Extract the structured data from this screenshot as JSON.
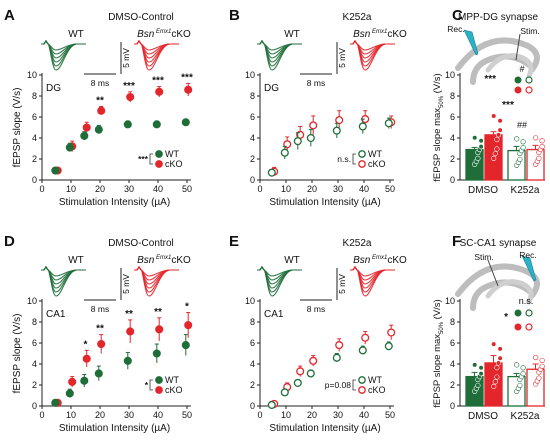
{
  "colors": {
    "wt": "#1f6e3a",
    "cko": "#e3262b",
    "axis": "#222222",
    "brain": "#bdbdbd",
    "electrode": "#29b3c7"
  },
  "text": {
    "wt": "WT",
    "bsn": "Bsn",
    "emx": "Emx1",
    "cko": "cKO",
    "scale_time": "8 ms",
    "scale_volt": "5 mV",
    "rec": "Rec.",
    "stim": "Stim.",
    "stim_sc": "Stim.",
    "rec_sc": "Rec."
  },
  "chart_data": [
    {
      "panel": "A",
      "type": "scatter",
      "title": "DMSO-Control",
      "region": "DG",
      "xlabel": "Stimulation Intensity (µA)",
      "ylabel": "fEPSP slope (V/s)",
      "xlim": [
        0,
        50
      ],
      "ylim": [
        0,
        10
      ],
      "xticks": [
        "0",
        "10",
        "20",
        "30",
        "40",
        "50"
      ],
      "yticks": [
        "0",
        "2",
        "4",
        "6",
        "8",
        "10"
      ],
      "x": [
        5,
        10,
        15,
        20,
        30,
        40,
        50
      ],
      "series": [
        {
          "name": "WT",
          "marker": "filled",
          "values": [
            0.9,
            3.1,
            4.2,
            4.8,
            5.3,
            5.3,
            5.5
          ],
          "errors": [
            0.2,
            0.4,
            0.4,
            0.4,
            0.3,
            0.3,
            0.3
          ]
        },
        {
          "name": "cKO",
          "marker": "filled",
          "values": [
            0.9,
            3.2,
            5.0,
            6.6,
            7.9,
            8.4,
            8.6
          ],
          "errors": [
            0.2,
            0.5,
            0.5,
            0.4,
            0.5,
            0.5,
            0.6
          ]
        }
      ],
      "significance": [
        "",
        "",
        "",
        "**",
        "***",
        "***",
        "***"
      ],
      "legend_sig": "***"
    },
    {
      "panel": "B",
      "type": "scatter",
      "title": "K252a",
      "region": "DG",
      "xlabel": "Stimulation Intensity (µA)",
      "ylabel": "",
      "xlim": [
        0,
        50
      ],
      "ylim": [
        0,
        10
      ],
      "xticks": [
        "0",
        "10",
        "20",
        "30",
        "40",
        "50"
      ],
      "yticks": [
        "0",
        "2",
        "4",
        "6",
        "8",
        "10"
      ],
      "x": [
        5,
        10,
        15,
        20,
        30,
        40,
        50
      ],
      "series": [
        {
          "name": "WT",
          "marker": "open",
          "values": [
            0.7,
            2.6,
            3.7,
            4.0,
            4.7,
            5.1,
            5.4
          ],
          "errors": [
            0.3,
            0.6,
            0.8,
            0.8,
            0.7,
            0.7,
            0.5
          ]
        },
        {
          "name": "cKO",
          "marker": "open",
          "values": [
            0.8,
            3.4,
            4.3,
            5.2,
            5.7,
            5.8,
            5.5
          ],
          "errors": [
            0.4,
            0.7,
            0.8,
            0.9,
            0.9,
            0.8,
            0.6
          ]
        }
      ],
      "significance": [],
      "legend_sig": "n.s."
    },
    {
      "panel": "C",
      "type": "bar",
      "title": "MPP-DG synapse",
      "ylabel": "fEPSP slope max50% (V/s)",
      "ylim": [
        0,
        10
      ],
      "yticks": [
        "0",
        "2",
        "4",
        "6",
        "8",
        "10"
      ],
      "categories": [
        "DMSO",
        "K252a"
      ],
      "series": [
        {
          "name": "WT",
          "values": [
            2.9,
            2.8
          ],
          "errors": [
            0.2,
            0.4
          ]
        },
        {
          "name": "cKO",
          "values": [
            4.3,
            2.9
          ],
          "errors": [
            0.3,
            0.4
          ]
        }
      ],
      "annotations": [
        "***",
        "***",
        "#",
        "##"
      ]
    },
    {
      "panel": "D",
      "type": "scatter",
      "title": "DMSO-Control",
      "region": "CA1",
      "xlabel": "Stimulation Intensity (µA)",
      "ylabel": "fEPSP slope (V/s)",
      "xlim": [
        0,
        50
      ],
      "ylim": [
        0,
        10
      ],
      "xticks": [
        "0",
        "10",
        "20",
        "30",
        "40",
        "50"
      ],
      "yticks": [
        "0",
        "2",
        "4",
        "6",
        "8",
        "10"
      ],
      "x": [
        5,
        10,
        15,
        20,
        30,
        40,
        50
      ],
      "series": [
        {
          "name": "WT",
          "marker": "filled",
          "values": [
            0.3,
            1.2,
            2.4,
            3.1,
            4.3,
            5.0,
            5.8
          ],
          "errors": [
            0.1,
            0.4,
            0.6,
            0.7,
            0.8,
            0.9,
            1.0
          ]
        },
        {
          "name": "cKO",
          "marker": "filled",
          "values": [
            0.3,
            2.3,
            4.5,
            5.9,
            7.1,
            7.3,
            7.7
          ],
          "errors": [
            0.1,
            0.5,
            0.8,
            0.9,
            1.1,
            1.1,
            1.2
          ]
        }
      ],
      "significance": [
        "",
        "",
        "*",
        "**",
        "**",
        "**",
        "*"
      ],
      "legend_sig": "*"
    },
    {
      "panel": "E",
      "type": "scatter",
      "title": "K252a",
      "region": "CA1",
      "xlabel": "Stimulation Intensity (µA)",
      "ylabel": "",
      "xlim": [
        0,
        50
      ],
      "ylim": [
        0,
        10
      ],
      "xticks": [
        "0",
        "10",
        "20",
        "30",
        "40",
        "50"
      ],
      "yticks": [
        "0",
        "2",
        "4",
        "6",
        "8",
        "10"
      ],
      "x": [
        5,
        10,
        15,
        20,
        30,
        40,
        50
      ],
      "series": [
        {
          "name": "WT",
          "marker": "open",
          "values": [
            0.1,
            1.3,
            2.2,
            3.1,
            4.6,
            5.3,
            5.7
          ],
          "errors": [
            0.1,
            0.3,
            0.3,
            0.3,
            0.4,
            0.4,
            0.4
          ]
        },
        {
          "name": "cKO",
          "marker": "open",
          "values": [
            0.2,
            1.8,
            3.3,
            4.3,
            5.8,
            6.5,
            7.0
          ],
          "errors": [
            0.1,
            0.4,
            0.5,
            0.5,
            0.6,
            0.6,
            0.7
          ]
        }
      ],
      "significance": [],
      "legend_sig": "p=0.08"
    },
    {
      "panel": "F",
      "type": "bar",
      "title": "SC-CA1 synapse",
      "ylabel": "fEPSP slope max50% (V/s)",
      "ylim": [
        0,
        10
      ],
      "yticks": [
        "0",
        "2",
        "4",
        "6",
        "8",
        "10"
      ],
      "categories": [
        "DMSO",
        "K252a"
      ],
      "series": [
        {
          "name": "WT",
          "values": [
            2.8,
            2.8
          ],
          "errors": [
            0.4,
            0.3
          ]
        },
        {
          "name": "cKO",
          "values": [
            4.1,
            3.5
          ],
          "errors": [
            0.7,
            0.5
          ]
        }
      ],
      "annotations": [
        "n.s.",
        "*"
      ]
    }
  ]
}
